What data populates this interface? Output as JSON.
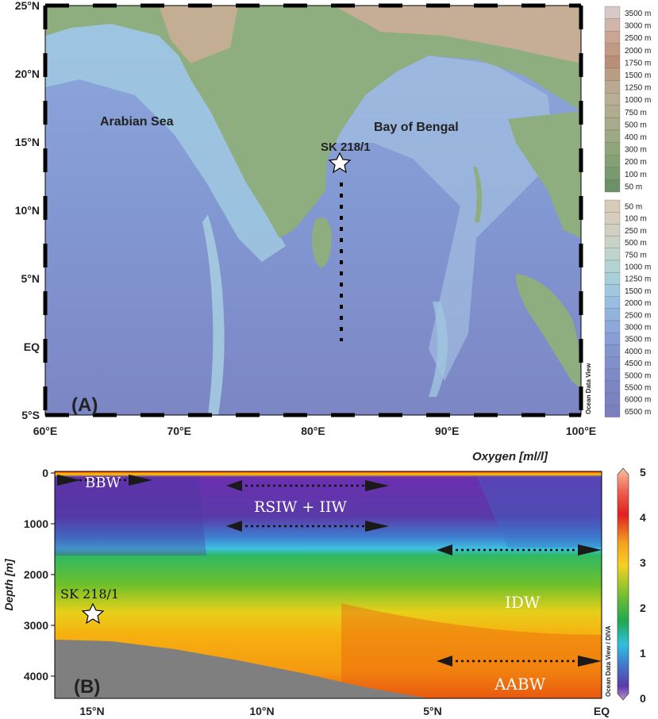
{
  "map": {
    "panel_label": "(A)",
    "lat_ticks": [
      "25°N",
      "20°N",
      "15°N",
      "10°N",
      "5°N",
      "EQ",
      "5°S"
    ],
    "lon_ticks": [
      "60°E",
      "70°E",
      "80°E",
      "90°E",
      "100°E"
    ],
    "regions": {
      "arabian": "Arabian Sea",
      "bengal": "Bay of Bengal"
    },
    "station": "SK 218/1",
    "credit": "Ocean Data View",
    "legend_land": [
      "3500 m",
      "3000 m",
      "2500 m",
      "2000 m",
      "1750 m",
      "1500 m",
      "1250 m",
      "1000 m",
      "750 m",
      "500 m",
      "400 m",
      "300 m",
      "200 m",
      "100 m",
      "50 m"
    ],
    "legend_land_colors": [
      "#d8c8c8",
      "#d1b5a8",
      "#c9a593",
      "#c29a84",
      "#b98f78",
      "#b99e84",
      "#baa890",
      "#b8ad95",
      "#b0ac8f",
      "#a7ab8b",
      "#9ca984",
      "#8fa57c",
      "#84a074",
      "#789a6e",
      "#6c9169"
    ],
    "legend_sea": [
      "50 m",
      "100 m",
      "250 m",
      "500 m",
      "750 m",
      "1000 m",
      "1250 m",
      "1500 m",
      "2000 m",
      "2500 m",
      "3000 m",
      "3500 m",
      "4000 m",
      "4500 m",
      "5000 m",
      "5500 m",
      "6000 m",
      "6500 m"
    ],
    "legend_sea_colors": [
      "#d8cbb8",
      "#d6cdbe",
      "#d1cfc2",
      "#c9d2c6",
      "#bfd4cc",
      "#b4d4d2",
      "#a9d0da",
      "#a0c9e0",
      "#98bde1",
      "#93b3df",
      "#8ea8db",
      "#899ed6",
      "#8496d0",
      "#8190cc",
      "#7e8ac8",
      "#7d86c5",
      "#7c83c2",
      "#7a80bf"
    ]
  },
  "section": {
    "panel_label": "(B)",
    "title": "Oxygen [ml/l]",
    "ylabel": "Depth [m]",
    "depth_ticks": [
      "0",
      "1000",
      "2000",
      "3000",
      "4000"
    ],
    "lat_ticks": [
      "15°N",
      "10°N",
      "5°N",
      "EQ"
    ],
    "water_masses": {
      "bbw": "BBW",
      "rsiw": "RSIW + IIW",
      "idw": "IDW",
      "aabw": "AABW"
    },
    "station": "SK 218/1",
    "credit": "Ocean Data View / DIVA",
    "colorbar_ticks": [
      "5",
      "4",
      "3",
      "2",
      "1",
      "0"
    ]
  }
}
